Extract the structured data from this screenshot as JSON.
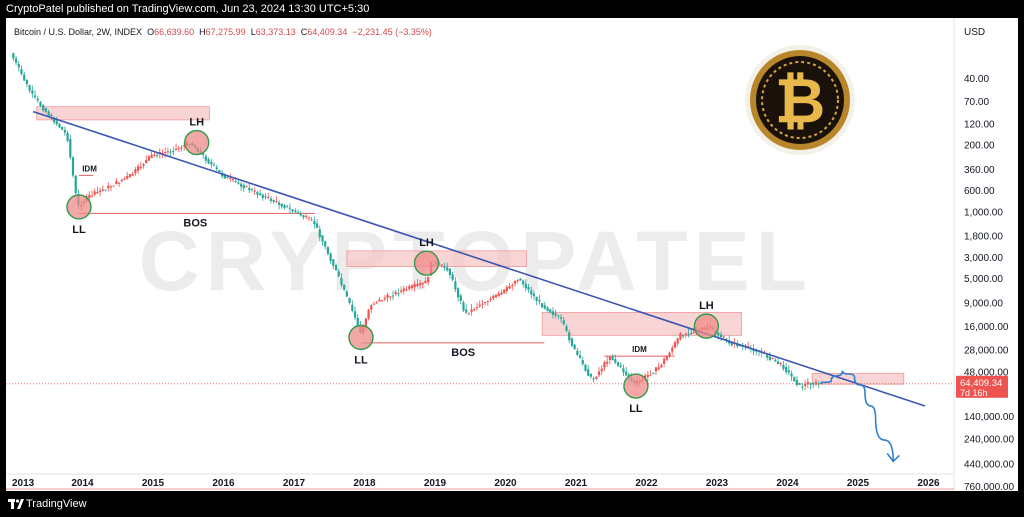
{
  "header": {
    "published": "CryptoPatel published on TradingView.com, Jun 23, 2024 13:30 UTC+5:30"
  },
  "legend": {
    "symbol": "Bitcoin / U.S. Dollar, 2W, INDEX",
    "o_label": "O",
    "o": "66,639.60",
    "h_label": "H",
    "h": "67,275.99",
    "l_label": "L",
    "l": "63,373.13",
    "c_label": "C",
    "c": "64,409.34",
    "change": "−2,231.45 (−3.35%)"
  },
  "watermark": "CRYPTOPATEL",
  "footer": {
    "brand": "TradingView"
  },
  "colors": {
    "up": "#26a69a",
    "down": "#ef5350",
    "trendline": "#3a55b4",
    "zone": "#f7c6c6",
    "circle": "#f08a8a",
    "circle_border": "#2e9c4a",
    "projection": "#2f7fd1",
    "price_badge": "#ef5350"
  },
  "chart_data": {
    "type": "candlestick",
    "title": "Bitcoin / U.S. Dollar, 2W, INDEX",
    "currency": "USD",
    "y_scale": "log",
    "y_inverted": true,
    "y_ticks": [
      "40.00",
      "70.00",
      "120.00",
      "200.00",
      "360.00",
      "600.00",
      "1,000.00",
      "1,800.00",
      "3,000.00",
      "5,000.00",
      "9,000.00",
      "16,000.00",
      "28,000.00",
      "48,000.00",
      "140,000.00",
      "240,000.00",
      "440,000.00",
      "760,000.00"
    ],
    "x_ticks": [
      "2013",
      "2014",
      "2015",
      "2016",
      "2017",
      "2018",
      "2019",
      "2020",
      "2021",
      "2022",
      "2023",
      "2024",
      "2025",
      "2026"
    ],
    "last_price": {
      "value": "64,409.34",
      "countdown": "7d 16h"
    },
    "ohlc_last": {
      "open": 66639.6,
      "high": 67275.99,
      "low": 63373.13,
      "close": 64409.34
    },
    "price_path": [
      {
        "t": 2013.0,
        "p": 22
      },
      {
        "t": 2013.3,
        "p": 60
      },
      {
        "t": 2013.5,
        "p": 90
      },
      {
        "t": 2013.8,
        "p": 160
      },
      {
        "t": 2013.95,
        "p": 900
      },
      {
        "t": 2014.1,
        "p": 700
      },
      {
        "t": 2014.4,
        "p": 550
      },
      {
        "t": 2014.7,
        "p": 420
      },
      {
        "t": 2015.0,
        "p": 260
      },
      {
        "t": 2015.3,
        "p": 230
      },
      {
        "t": 2015.55,
        "p": 190
      },
      {
        "t": 2015.8,
        "p": 300
      },
      {
        "t": 2016.0,
        "p": 420
      },
      {
        "t": 2016.5,
        "p": 650
      },
      {
        "t": 2016.9,
        "p": 900
      },
      {
        "t": 2017.3,
        "p": 1300
      },
      {
        "t": 2017.6,
        "p": 4000
      },
      {
        "t": 2017.9,
        "p": 14000
      },
      {
        "t": 2017.97,
        "p": 19500
      },
      {
        "t": 2018.1,
        "p": 9500
      },
      {
        "t": 2018.5,
        "p": 7000
      },
      {
        "t": 2018.9,
        "p": 5500
      },
      {
        "t": 2018.97,
        "p": 3400
      },
      {
        "t": 2019.2,
        "p": 4000
      },
      {
        "t": 2019.45,
        "p": 12000
      },
      {
        "t": 2019.7,
        "p": 9000
      },
      {
        "t": 2019.97,
        "p": 7200
      },
      {
        "t": 2020.2,
        "p": 5000
      },
      {
        "t": 2020.5,
        "p": 9200
      },
      {
        "t": 2020.8,
        "p": 13500
      },
      {
        "t": 2021.0,
        "p": 29000
      },
      {
        "t": 2021.25,
        "p": 60000
      },
      {
        "t": 2021.5,
        "p": 33000
      },
      {
        "t": 2021.85,
        "p": 65000
      },
      {
        "t": 2022.2,
        "p": 43000
      },
      {
        "t": 2022.5,
        "p": 20000
      },
      {
        "t": 2022.9,
        "p": 16500
      },
      {
        "t": 2023.2,
        "p": 24000
      },
      {
        "t": 2023.6,
        "p": 29000
      },
      {
        "t": 2023.95,
        "p": 42000
      },
      {
        "t": 2024.2,
        "p": 70000
      },
      {
        "t": 2024.3,
        "p": 63000
      },
      {
        "t": 2024.47,
        "p": 64409
      }
    ],
    "projection": [
      {
        "t": 2024.47,
        "p": 64409
      },
      {
        "t": 2024.62,
        "p": 60000
      },
      {
        "t": 2024.78,
        "p": 47000
      },
      {
        "t": 2024.95,
        "p": 55000
      },
      {
        "t": 2025.1,
        "p": 80000
      },
      {
        "t": 2025.25,
        "p": 150000
      },
      {
        "t": 2025.5,
        "p": 420000
      }
    ],
    "trendline": [
      {
        "t": 2013.3,
        "p": 90
      },
      {
        "t": 2025.95,
        "p": 110000
      }
    ],
    "zones": [
      {
        "t1": 2013.35,
        "t2": 2015.8,
        "p1": 110,
        "p2": 80
      },
      {
        "t1": 2017.75,
        "t2": 2020.3,
        "p1": 3800,
        "p2": 2600
      },
      {
        "t1": 2020.52,
        "t2": 2023.35,
        "p1": 20000,
        "p2": 11500
      },
      {
        "t1": 2024.35,
        "t2": 2025.65,
        "p1": 65000,
        "p2": 50000
      }
    ],
    "horizontal_levels": [
      {
        "t1": 2013.95,
        "t2": 2017.3,
        "p": 1050
      },
      {
        "t1": 2017.95,
        "t2": 2020.55,
        "p": 24000
      },
      {
        "t1": 2013.95,
        "t2": 2014.15,
        "p": 420
      },
      {
        "t1": 2021.4,
        "t2": 2022.4,
        "p": 33000
      }
    ],
    "annotations": [
      {
        "text": "LH",
        "t": 2015.62,
        "p": 190,
        "circle": true,
        "label_pos": "above"
      },
      {
        "text": "LL",
        "t": 2013.95,
        "p": 900,
        "circle": true,
        "label_pos": "below"
      },
      {
        "text": "LH",
        "t": 2018.88,
        "p": 3500,
        "circle": true,
        "label_pos": "above"
      },
      {
        "text": "LL",
        "t": 2017.95,
        "p": 21000,
        "circle": true,
        "label_pos": "below"
      },
      {
        "text": "LH",
        "t": 2022.85,
        "p": 16000,
        "circle": true,
        "label_pos": "above"
      },
      {
        "text": "LL",
        "t": 2021.85,
        "p": 68000,
        "circle": true,
        "label_pos": "below"
      },
      {
        "text": "BOS",
        "t": 2015.6,
        "p": 1050,
        "circle": false,
        "label_pos": "below"
      },
      {
        "text": "BOS",
        "t": 2019.4,
        "p": 24000,
        "circle": false,
        "label_pos": "below"
      },
      {
        "text": "IDM",
        "t": 2014.1,
        "p": 420,
        "circle": false,
        "label_pos": "above"
      },
      {
        "text": "IDM",
        "t": 2021.9,
        "p": 33000,
        "circle": false,
        "label_pos": "above"
      }
    ]
  }
}
